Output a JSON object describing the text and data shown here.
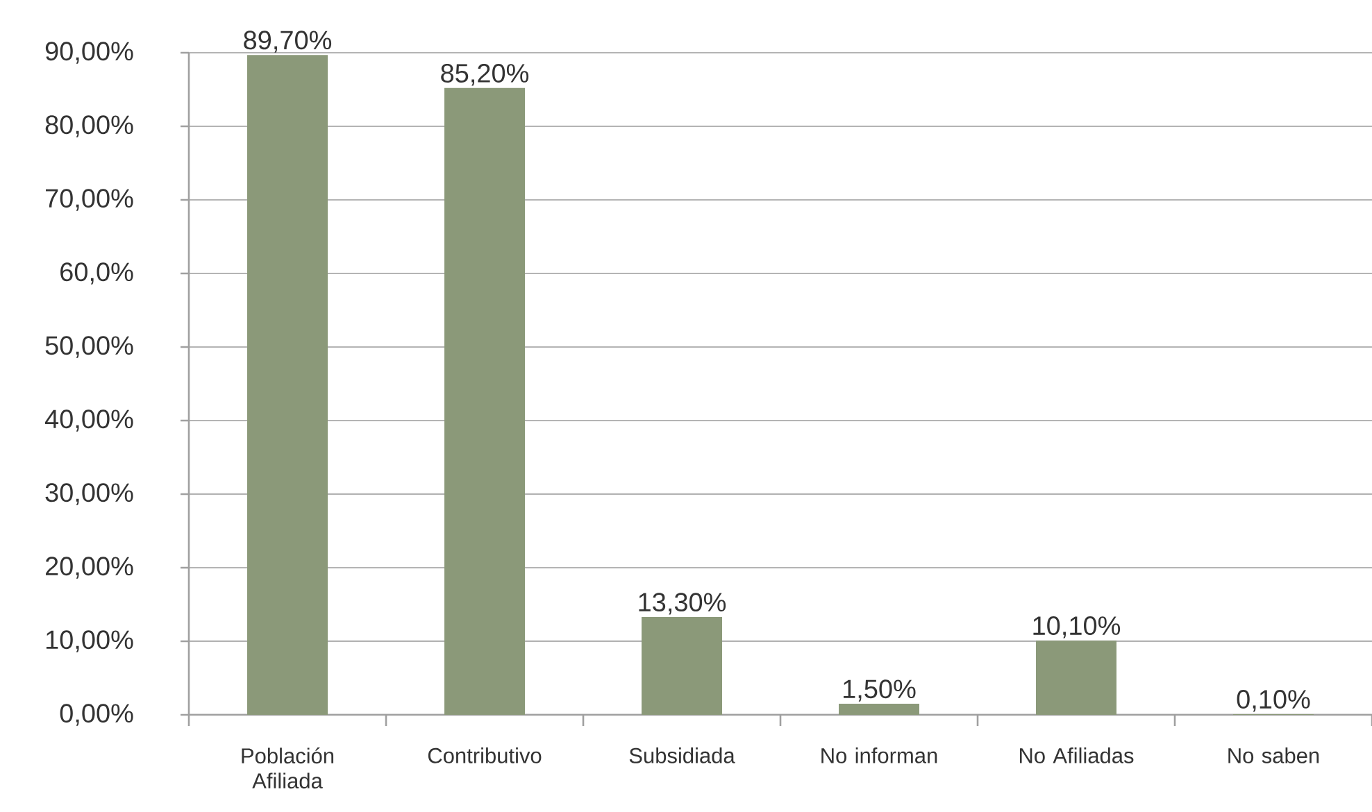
{
  "chart_data": {
    "type": "bar",
    "categories": [
      "Población Afiliada",
      "Contributivo",
      "Subsidiada",
      "No informan",
      "No Afiliadas",
      "No saben"
    ],
    "values": [
      89.7,
      85.2,
      13.3,
      1.5,
      10.1,
      0.1
    ],
    "value_labels": [
      "89,70%",
      "85,20%",
      "13,30%",
      "1,50%",
      "10,10%",
      "0,10%"
    ],
    "color": "#8b9979",
    "ylim": [
      0,
      90
    ],
    "yticks": [
      {
        "value": 0,
        "label": "0,00%"
      },
      {
        "value": 10,
        "label": "10,00%"
      },
      {
        "value": 20,
        "label": "20,00%"
      },
      {
        "value": 30,
        "label": "30,00%"
      },
      {
        "value": 40,
        "label": "40,00%"
      },
      {
        "value": 50,
        "label": "50,00%"
      },
      {
        "value": 60,
        "label": "60,0%"
      },
      {
        "value": 70,
        "label": "70,00%"
      },
      {
        "value": 80,
        "label": "80,00%"
      },
      {
        "value": 90,
        "label": "90,00%"
      }
    ],
    "grid": "y"
  }
}
